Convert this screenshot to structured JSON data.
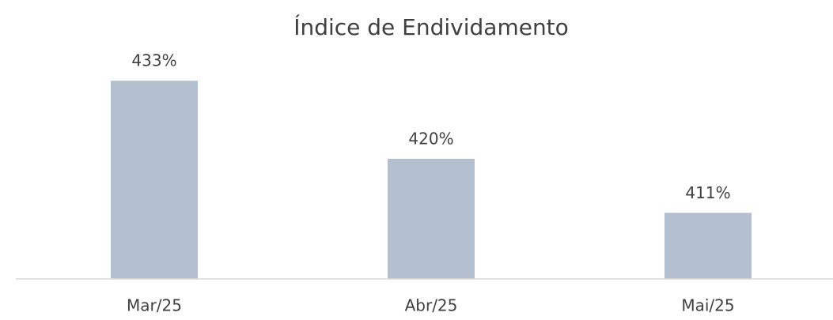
{
  "chart_data": {
    "type": "bar",
    "title": "Índice de Endividamento",
    "categories": [
      "Mar/25",
      "Abr/25",
      "Mai/25"
    ],
    "values": [
      433,
      420,
      411
    ],
    "value_labels": [
      "433%",
      "420%",
      "411%"
    ],
    "color": "#b4bfcf",
    "ylim": [
      400,
      440
    ]
  }
}
